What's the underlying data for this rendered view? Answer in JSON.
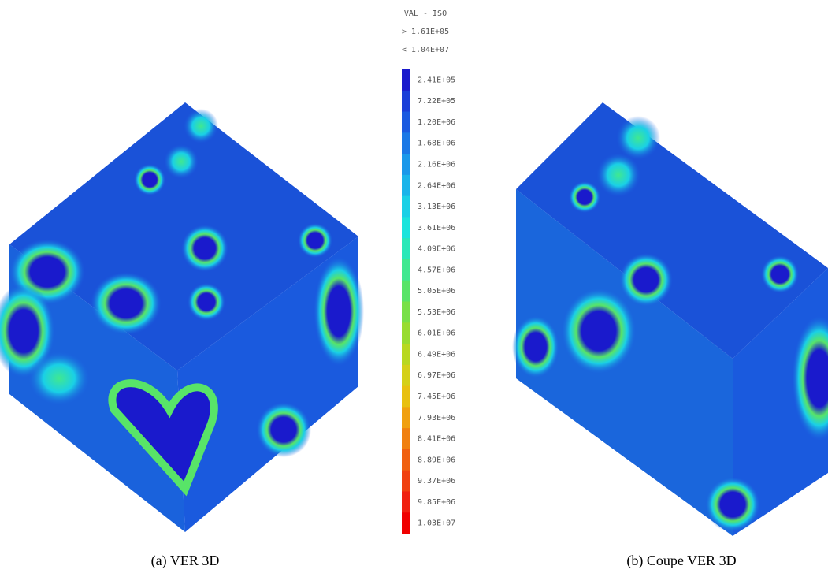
{
  "figure": {
    "legend": {
      "title": "VAL - ISO",
      "min_label": "> 1.61E+05",
      "max_label": "< 1.04E+07",
      "entries": [
        {
          "label": "2.41E+05",
          "color": "#1a1acc"
        },
        {
          "label": "7.22E+05",
          "color": "#1a3fd8"
        },
        {
          "label": "1.20E+06",
          "color": "#1a5ae0"
        },
        {
          "label": "1.68E+06",
          "color": "#1a78e6"
        },
        {
          "label": "2.16E+06",
          "color": "#1a98ea"
        },
        {
          "label": "2.64E+06",
          "color": "#1ab4ea"
        },
        {
          "label": "3.13E+06",
          "color": "#1ad0e6"
        },
        {
          "label": "3.61E+06",
          "color": "#1ae4dc"
        },
        {
          "label": "4.09E+06",
          "color": "#2ae8b8"
        },
        {
          "label": "4.57E+06",
          "color": "#40e890"
        },
        {
          "label": "5.05E+06",
          "color": "#58e468"
        },
        {
          "label": "5.53E+06",
          "color": "#78e048"
        },
        {
          "label": "6.01E+06",
          "color": "#98dc30"
        },
        {
          "label": "6.49E+06",
          "color": "#b8d820"
        },
        {
          "label": "6.97E+06",
          "color": "#d4d018"
        },
        {
          "label": "7.45E+06",
          "color": "#e8c010"
        },
        {
          "label": "7.93E+06",
          "color": "#f0a010"
        },
        {
          "label": "8.41E+06",
          "color": "#f08010"
        },
        {
          "label": "8.89E+06",
          "color": "#f06010"
        },
        {
          "label": "9.37E+06",
          "color": "#f04010"
        },
        {
          "label": "9.85E+06",
          "color": "#f02010"
        },
        {
          "label": "1.03E+07",
          "color": "#f00000"
        }
      ]
    },
    "captions": [
      "(a)  VER 3D",
      "(b)  Coupe VER 3D"
    ]
  }
}
